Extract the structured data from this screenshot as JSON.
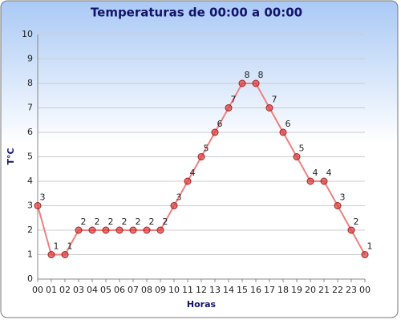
{
  "chart_data": {
    "type": "line",
    "title": "Temperaturas de 00:00 a 00:00",
    "x_label": "Horas",
    "y_label": "T°C",
    "categories": [
      "00",
      "01",
      "02",
      "03",
      "04",
      "05",
      "06",
      "07",
      "08",
      "09",
      "10",
      "11",
      "12",
      "13",
      "14",
      "15",
      "16",
      "17",
      "18",
      "19",
      "20",
      "21",
      "22",
      "23",
      "00"
    ],
    "series": [
      {
        "name": "T°C",
        "color": "#f08080",
        "values": [
          3,
          1,
          1,
          2,
          2,
          2,
          2,
          2,
          2,
          2,
          3,
          4,
          5,
          6,
          7,
          8,
          8,
          7,
          6,
          5,
          4,
          4,
          3,
          2,
          1
        ]
      }
    ],
    "ylim": [
      0,
      10
    ],
    "yticks": [
      0,
      1,
      2,
      3,
      4,
      5,
      6,
      7,
      8,
      9,
      10
    ],
    "grid": true
  }
}
